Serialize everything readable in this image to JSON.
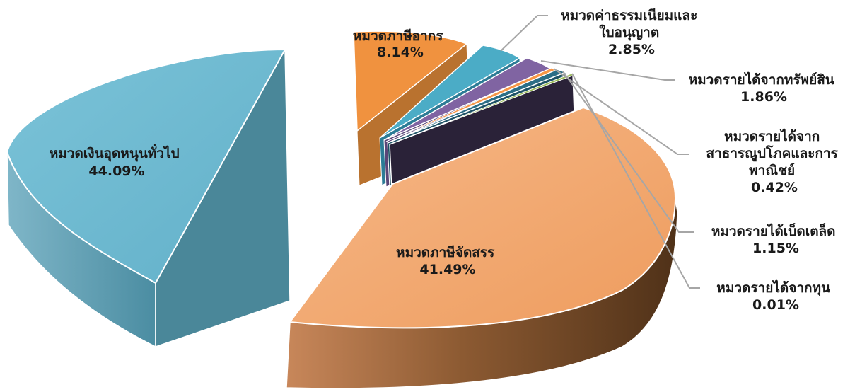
{
  "chart_data": {
    "type": "pie",
    "style": "3d-exploded",
    "title": "",
    "legend": "none",
    "slices": [
      {
        "label": [
          "หมวดภาษีอากร"
        ],
        "value": 8.14,
        "value_label": "8.14%",
        "color": "#F0923F"
      },
      {
        "label": [
          "หมวดค่าธรรมเนียมและ",
          "ใบอนุญาต"
        ],
        "value": 2.85,
        "value_label": "2.85%",
        "color": "#4BACC6"
      },
      {
        "label": [
          "หมวดรายได้จากทรัพย์สิน"
        ],
        "value": 1.86,
        "value_label": "1.86%",
        "color": "#8064A2"
      },
      {
        "label": [
          "หมวดรายได้จาก",
          "สาธารณูปโภคและการ",
          "พาณิชย์"
        ],
        "value": 0.42,
        "value_label": "0.42%",
        "color": "#F79646"
      },
      {
        "label": [
          "หมวดรายได้เบ็ดเตล็ด"
        ],
        "value": 1.15,
        "value_label": "1.15%",
        "color": "#2C6E86"
      },
      {
        "label": [
          "หมวดรายได้จากทุน"
        ],
        "value": 0.01,
        "value_label": "0.01%",
        "color": "#9BBB59"
      },
      {
        "label": [
          "หมวดภาษีจัดสรร"
        ],
        "value": 41.49,
        "value_label": "41.49%",
        "color": "#F3A86E"
      },
      {
        "label": [
          "หมวดเงินอุดหนุนทั่วไป"
        ],
        "value": 44.09,
        "value_label": "44.09%",
        "color": "#6CB8D0"
      }
    ],
    "dark_wedge_color": "#2A2238"
  }
}
